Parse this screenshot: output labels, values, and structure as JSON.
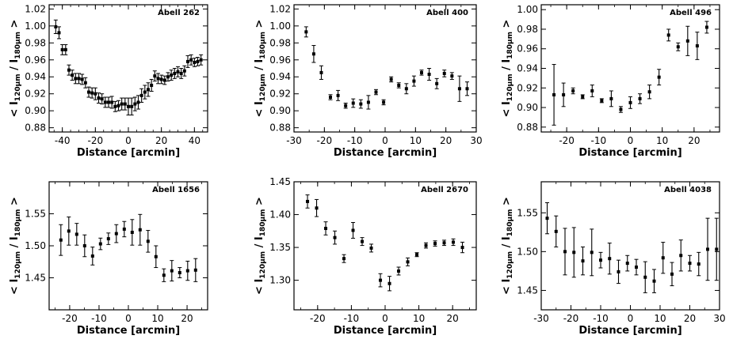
{
  "chart_data": [
    {
      "type": "scatter",
      "title": "Abell 262",
      "xlabel": "Distance [arcmin]",
      "ylabel": {
        "pre": "< I",
        "num_sub": "120µm",
        "sep": " / I",
        "den_sub": "180µm",
        "post": " >"
      },
      "xlim": [
        -48,
        48
      ],
      "ylim": [
        0.875,
        1.025
      ],
      "xticks": [
        -40,
        -20,
        0,
        20,
        40
      ],
      "yticks": [
        0.88,
        0.9,
        0.92,
        0.94,
        0.96,
        0.98,
        1.0,
        1.02
      ],
      "ytick_labels": [
        "0.88",
        "0.90",
        "0.92",
        "0.94",
        "0.96",
        "0.98",
        "1.00",
        "1.02"
      ],
      "x": [
        -44,
        -42,
        -40,
        -38,
        -36,
        -34,
        -32,
        -30,
        -28,
        -26,
        -24,
        -22,
        -20,
        -18,
        -16,
        -14,
        -12,
        -10,
        -8,
        -6,
        -4,
        -2,
        0,
        2,
        4,
        6,
        8,
        10,
        12,
        14,
        16,
        18,
        20,
        22,
        24,
        26,
        28,
        30,
        32,
        34,
        36,
        38,
        40,
        42,
        44
      ],
      "y": [
        0.999,
        0.992,
        0.972,
        0.972,
        0.948,
        0.942,
        0.938,
        0.938,
        0.937,
        0.933,
        0.922,
        0.921,
        0.92,
        0.915,
        0.914,
        0.91,
        0.91,
        0.91,
        0.905,
        0.906,
        0.908,
        0.908,
        0.905,
        0.905,
        0.908,
        0.91,
        0.918,
        0.922,
        0.925,
        0.93,
        0.941,
        0.938,
        0.937,
        0.936,
        0.94,
        0.942,
        0.944,
        0.946,
        0.944,
        0.947,
        0.958,
        0.96,
        0.957,
        0.958,
        0.96
      ],
      "err": [
        0.008,
        0.007,
        0.006,
        0.006,
        0.006,
        0.006,
        0.006,
        0.006,
        0.006,
        0.006,
        0.006,
        0.006,
        0.007,
        0.006,
        0.006,
        0.006,
        0.006,
        0.007,
        0.006,
        0.006,
        0.007,
        0.007,
        0.01,
        0.01,
        0.008,
        0.008,
        0.008,
        0.008,
        0.008,
        0.007,
        0.006,
        0.006,
        0.005,
        0.005,
        0.005,
        0.006,
        0.006,
        0.006,
        0.006,
        0.006,
        0.007,
        0.006,
        0.005,
        0.005,
        0.006
      ]
    },
    {
      "type": "scatter",
      "title": "Abell 400",
      "xlabel": "Distance [arcmin]",
      "ylabel": {
        "pre": "< I",
        "num_sub": "120µm",
        "sep": " / I",
        "den_sub": "180µm",
        "post": " >"
      },
      "xlim": [
        -30,
        30
      ],
      "ylim": [
        0.875,
        1.025
      ],
      "xticks": [
        -30,
        -20,
        -10,
        0,
        10,
        20,
        30
      ],
      "yticks": [
        0.88,
        0.9,
        0.92,
        0.94,
        0.96,
        0.98,
        1.0,
        1.02
      ],
      "ytick_labels": [
        "0.88",
        "0.90",
        "0.92",
        "0.94",
        "0.96",
        "0.98",
        "1.00",
        "1.02"
      ],
      "x": [
        -26,
        -23.5,
        -21,
        -18,
        -15.5,
        -13,
        -10.5,
        -8,
        -5.5,
        -3,
        -0.5,
        2,
        4.5,
        7,
        9.5,
        12,
        14.5,
        17,
        19.5,
        22,
        24.5,
        27
      ],
      "y": [
        0.993,
        0.967,
        0.945,
        0.916,
        0.918,
        0.906,
        0.909,
        0.908,
        0.91,
        0.922,
        0.91,
        0.937,
        0.93,
        0.926,
        0.935,
        0.945,
        0.943,
        0.932,
        0.944,
        0.941,
        0.926,
        0.926
      ],
      "err": [
        0.006,
        0.01,
        0.008,
        0.003,
        0.006,
        0.003,
        0.005,
        0.005,
        0.008,
        0.003,
        0.003,
        0.003,
        0.003,
        0.006,
        0.006,
        0.003,
        0.007,
        0.006,
        0.004,
        0.004,
        0.015,
        0.008
      ]
    },
    {
      "type": "scatter",
      "title": "Abell 496",
      "xlabel": "Distance [arcmin]",
      "ylabel": {
        "pre": "< I",
        "num_sub": "120µm",
        "sep": " / I",
        "den_sub": "180µm",
        "post": " >"
      },
      "xlim": [
        -28,
        28
      ],
      "ylim": [
        0.875,
        1.005
      ],
      "xticks": [
        -20,
        -10,
        0,
        10,
        20
      ],
      "yticks": [
        0.88,
        0.9,
        0.92,
        0.94,
        0.96,
        0.98,
        1.0
      ],
      "ytick_labels": [
        "0.88",
        "0.90",
        "0.92",
        "0.94",
        "0.96",
        "0.98",
        "1.00"
      ],
      "x": [
        -24,
        -21,
        -18,
        -15,
        -12,
        -9,
        -6,
        -3,
        0,
        3,
        6,
        9,
        12,
        15,
        18,
        21,
        24
      ],
      "y": [
        0.913,
        0.913,
        0.917,
        0.911,
        0.917,
        0.907,
        0.909,
        0.898,
        0.905,
        0.909,
        0.916,
        0.931,
        0.974,
        0.962,
        0.968,
        0.963,
        0.982
      ],
      "err": [
        0.031,
        0.012,
        0.003,
        0.002,
        0.006,
        0.002,
        0.008,
        0.003,
        0.006,
        0.005,
        0.007,
        0.008,
        0.006,
        0.004,
        0.015,
        0.014,
        0.006
      ]
    },
    {
      "type": "scatter",
      "title": "Abell 1656",
      "xlabel": "Distance [arcmin]",
      "ylabel": {
        "pre": "< I",
        "num_sub": "120µm",
        "sep": " / I",
        "den_sub": "180µm",
        "post": " >"
      },
      "xlim": [
        -27,
        27
      ],
      "ylim": [
        1.4,
        1.6
      ],
      "xticks": [
        -20,
        -10,
        0,
        10,
        20
      ],
      "yticks": [
        1.45,
        1.5,
        1.55
      ],
      "ytick_labels": [
        "1.45",
        "1.50",
        "1.55"
      ],
      "x": [
        -23,
        -20.3,
        -17.6,
        -14.9,
        -12.2,
        -9.5,
        -6.8,
        -4.1,
        -1.4,
        1.3,
        4.0,
        6.7,
        9.4,
        12.1,
        14.8,
        17.5,
        20.2,
        22.9
      ],
      "y": [
        1.509,
        1.523,
        1.518,
        1.5,
        1.484,
        1.503,
        1.511,
        1.519,
        1.526,
        1.521,
        1.525,
        1.507,
        1.483,
        1.454,
        1.461,
        1.458,
        1.461,
        1.462
      ],
      "err": [
        0.024,
        0.022,
        0.017,
        0.017,
        0.014,
        0.009,
        0.009,
        0.014,
        0.012,
        0.02,
        0.024,
        0.017,
        0.017,
        0.01,
        0.016,
        0.008,
        0.015,
        0.018
      ]
    },
    {
      "type": "scatter",
      "title": "Abell 2670",
      "xlabel": "Distance [arcmin]",
      "ylabel": {
        "pre": "< I",
        "num_sub": "120µm",
        "sep": " / I",
        "den_sub": "180µm",
        "post": " >"
      },
      "xlim": [
        -27,
        27
      ],
      "ylim": [
        1.255,
        1.45
      ],
      "xticks": [
        -20,
        -10,
        0,
        10,
        20
      ],
      "yticks": [
        1.3,
        1.35,
        1.4,
        1.45
      ],
      "ytick_labels": [
        "1.30",
        "1.35",
        "1.40",
        "1.45"
      ],
      "x": [
        -23,
        -20.3,
        -17.6,
        -14.9,
        -12.2,
        -9.5,
        -6.8,
        -4.1,
        -1.4,
        1.3,
        4.0,
        6.7,
        9.4,
        12.1,
        14.8,
        17.5,
        20.2,
        22.9
      ],
      "y": [
        1.42,
        1.41,
        1.379,
        1.365,
        1.333,
        1.376,
        1.359,
        1.349,
        1.3,
        1.295,
        1.314,
        1.328,
        1.339,
        1.353,
        1.356,
        1.357,
        1.358,
        1.35
      ],
      "err": [
        0.01,
        0.013,
        0.01,
        0.01,
        0.006,
        0.012,
        0.006,
        0.006,
        0.01,
        0.011,
        0.006,
        0.006,
        0.003,
        0.004,
        0.004,
        0.004,
        0.005,
        0.008
      ]
    },
    {
      "type": "scatter",
      "title": "Abell 4038",
      "xlabel": "Distance [arcmin]",
      "ylabel": {
        "pre": "< I",
        "num_sub": "120µm",
        "sep": " / I",
        "den_sub": "180µm",
        "post": " >"
      },
      "xlim": [
        -30,
        30
      ],
      "ylim": [
        1.425,
        1.59
      ],
      "xticks": [
        -30,
        -20,
        -10,
        0,
        10,
        20,
        30
      ],
      "yticks": [
        1.45,
        1.5,
        1.55
      ],
      "ytick_labels": [
        "1.45",
        "1.50",
        "1.55"
      ],
      "x": [
        -28,
        -25,
        -22,
        -19,
        -16,
        -13,
        -10,
        -7,
        -4,
        -1,
        2,
        5,
        8,
        11,
        14,
        17,
        20,
        23,
        26,
        29
      ],
      "y": [
        1.543,
        1.526,
        1.5,
        1.499,
        1.488,
        1.499,
        1.489,
        1.491,
        1.474,
        1.485,
        1.48,
        1.467,
        1.462,
        1.492,
        1.471,
        1.495,
        1.485,
        1.484,
        1.503,
        1.503
      ],
      "err": [
        0.02,
        0.02,
        0.03,
        0.032,
        0.018,
        0.03,
        0.01,
        0.02,
        0.015,
        0.01,
        0.01,
        0.02,
        0.015,
        0.02,
        0.015,
        0.02,
        0.01,
        0.015,
        0.04,
        0.04
      ]
    }
  ]
}
